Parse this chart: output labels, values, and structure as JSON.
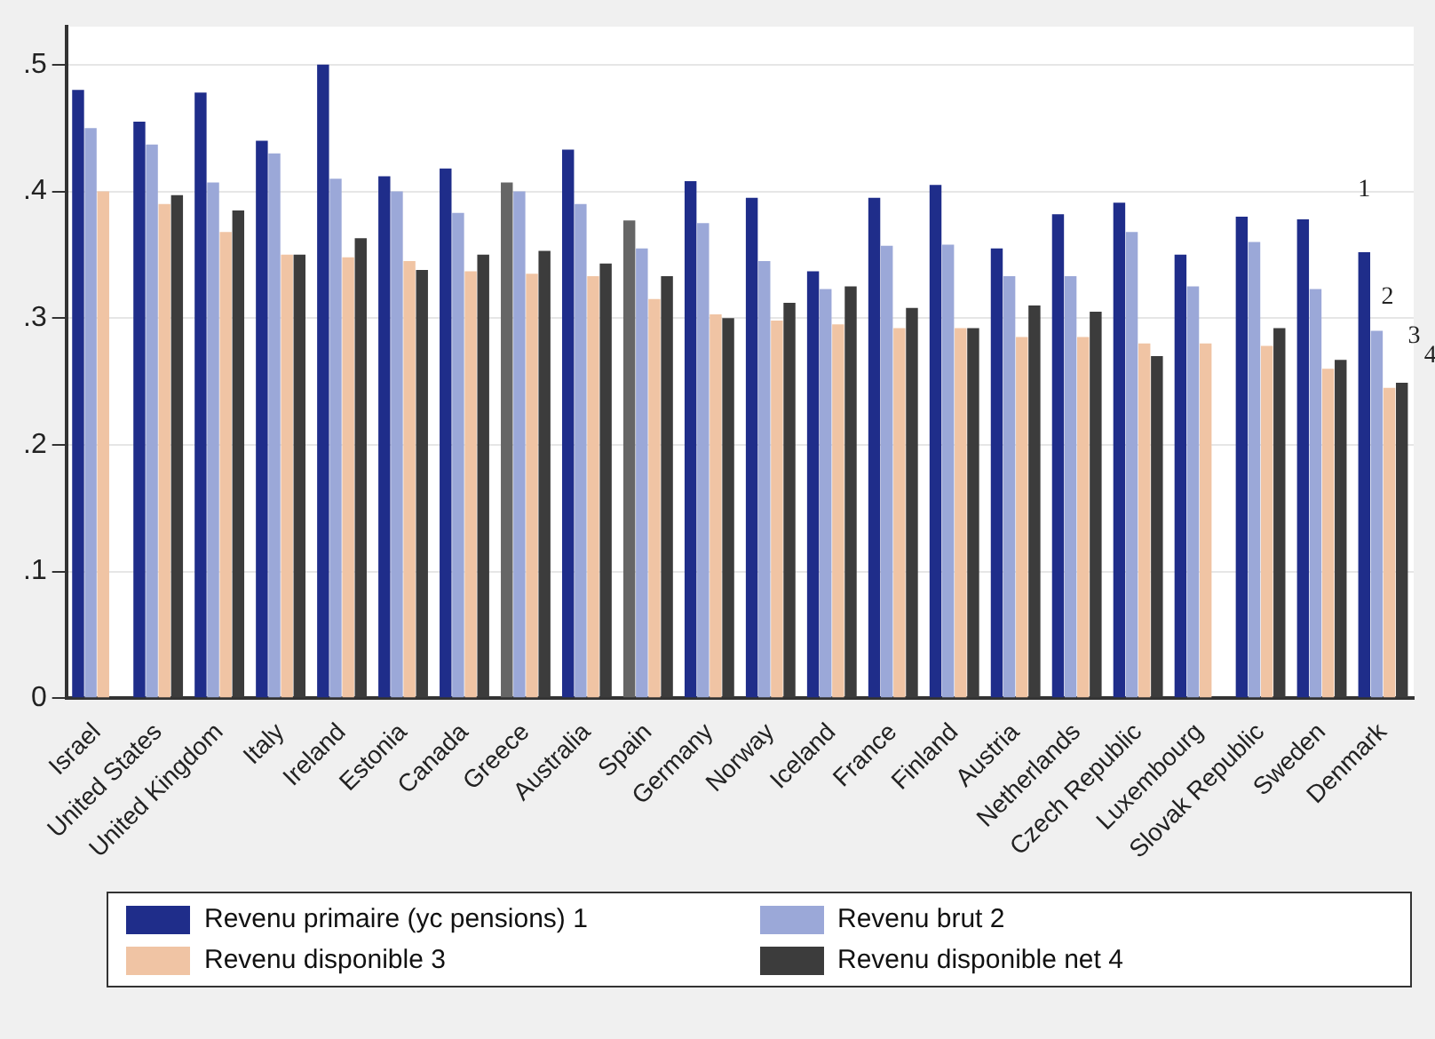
{
  "chart_data": {
    "type": "bar",
    "categories": [
      "Israel",
      "United States",
      "United Kingdom",
      "Italy",
      "Ireland",
      "Estonia",
      "Canada",
      "Greece",
      "Australia",
      "Spain",
      "Germany",
      "Norway",
      "Iceland",
      "France",
      "Finland",
      "Austria",
      "Netherlands",
      "Czech Republic",
      "Luxembourg",
      "Slovak Republic",
      "Sweden",
      "Denmark"
    ],
    "series": [
      {
        "name": "Revenu primaire (yc pensions) 1",
        "color": "#1f2d8a",
        "colors": [
          "#1f2d8a",
          "#1f2d8a",
          "#1f2d8a",
          "#1f2d8a",
          "#1f2d8a",
          "#1f2d8a",
          "#1f2d8a",
          "#666666",
          "#1f2d8a",
          "#666666",
          "#1f2d8a",
          "#1f2d8a",
          "#1f2d8a",
          "#1f2d8a",
          "#1f2d8a",
          "#1f2d8a",
          "#1f2d8a",
          "#1f2d8a",
          "#1f2d8a",
          "#1f2d8a",
          "#1f2d8a",
          "#1f2d8a"
        ],
        "values": [
          0.48,
          0.455,
          0.478,
          0.44,
          0.5,
          0.412,
          0.418,
          0.407,
          0.433,
          0.377,
          0.408,
          0.395,
          0.337,
          0.395,
          0.405,
          0.355,
          0.382,
          0.391,
          0.35,
          0.38,
          0.378,
          0.352
        ]
      },
      {
        "name": "Revenu brut 2",
        "color": "#9ba8d8",
        "values": [
          0.45,
          0.437,
          0.407,
          0.43,
          0.41,
          0.4,
          0.383,
          0.4,
          0.39,
          0.355,
          0.375,
          0.345,
          0.323,
          0.357,
          0.358,
          0.333,
          0.333,
          0.368,
          0.325,
          0.36,
          0.323,
          0.29
        ]
      },
      {
        "name": "Revenu disponible 3",
        "color": "#f0c4a4",
        "values": [
          0.4,
          0.39,
          0.368,
          0.35,
          0.348,
          0.345,
          0.337,
          0.335,
          0.333,
          0.315,
          0.303,
          0.298,
          0.295,
          0.292,
          0.292,
          0.285,
          0.285,
          0.28,
          0.28,
          0.278,
          0.26,
          0.245
        ]
      },
      {
        "name": "Revenu disponible net 4",
        "color": "#3c3c3c",
        "values": [
          null,
          0.397,
          0.385,
          0.35,
          0.363,
          0.338,
          0.35,
          0.353,
          0.343,
          0.333,
          0.3,
          0.312,
          0.325,
          0.308,
          0.292,
          0.31,
          0.305,
          0.27,
          null,
          0.292,
          0.267,
          0.249
        ]
      }
    ],
    "ylim": [
      0,
      0.53
    ],
    "yticks": [
      0,
      {
        "value": 0.1,
        "label": ".1"
      },
      {
        "value": 0.2,
        "label": ".2"
      },
      {
        "value": 0.3,
        "label": ".3"
      },
      {
        "value": 0.4,
        "label": ".4"
      },
      {
        "value": 0.5,
        "label": ".5"
      }
    ],
    "grid": "y",
    "legend": "bottom",
    "annotations": [
      "1",
      "2",
      "3",
      "4"
    ]
  }
}
